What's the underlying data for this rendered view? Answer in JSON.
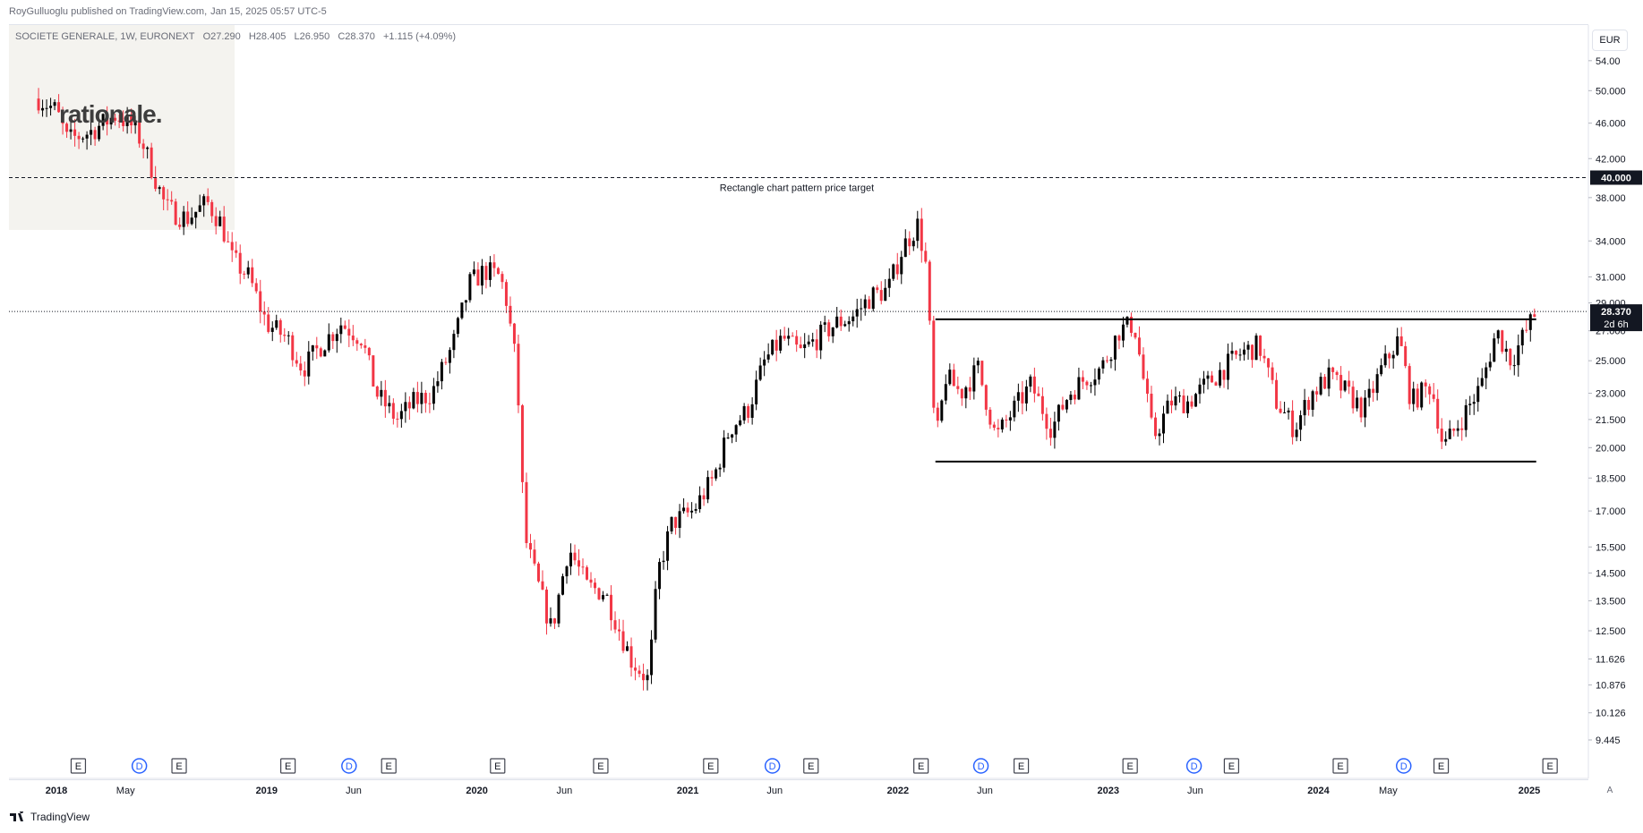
{
  "header": {
    "publisher": "RoyGulluoglu published on TradingView.com,",
    "timestamp": "Jan 15, 2025 05:57 UTC-5"
  },
  "symbol": {
    "name": "SOCIETE GENERALE, 1W, EURONEXT",
    "open": "O27.290",
    "high": "H28.405",
    "low": "L26.950",
    "close": "C28.370",
    "change": "+1.115 (+4.09%)"
  },
  "watermark": "rationale.",
  "currency": "EUR",
  "footer": {
    "brand": "TradingView",
    "auto_label": "A"
  },
  "colors": {
    "up": "#000000",
    "down": "#f23645",
    "grid": "#e0e3eb",
    "event_d": "#2962ff"
  },
  "chart_data": {
    "type": "candlestick",
    "y_scale": "log",
    "price_ticks": [
      "54.00",
      "50.000",
      "46.000",
      "42.000",
      "38.000",
      "34.000",
      "31.000",
      "29.000",
      "27.000",
      "25.000",
      "23.000",
      "21.500",
      "20.000",
      "18.500",
      "17.000",
      "15.500",
      "14.500",
      "13.500",
      "12.500",
      "11.626",
      "10.876",
      "10.126",
      "9.445"
    ],
    "time_labels": [
      {
        "label": "2018",
        "bold": true,
        "date": "2018-01-01"
      },
      {
        "label": "May",
        "bold": false,
        "date": "2018-05-01"
      },
      {
        "label": "2019",
        "bold": true,
        "date": "2019-01-01"
      },
      {
        "label": "Jun",
        "bold": false,
        "date": "2019-06-01"
      },
      {
        "label": "2020",
        "bold": true,
        "date": "2020-01-01"
      },
      {
        "label": "Jun",
        "bold": false,
        "date": "2020-06-01"
      },
      {
        "label": "2021",
        "bold": true,
        "date": "2021-01-01"
      },
      {
        "label": "Jun",
        "bold": false,
        "date": "2021-06-01"
      },
      {
        "label": "2022",
        "bold": true,
        "date": "2022-01-01"
      },
      {
        "label": "Jun",
        "bold": false,
        "date": "2022-06-01"
      },
      {
        "label": "2023",
        "bold": true,
        "date": "2023-01-01"
      },
      {
        "label": "Jun",
        "bold": false,
        "date": "2023-06-01"
      },
      {
        "label": "2024",
        "bold": true,
        "date": "2024-01-01"
      },
      {
        "label": "May",
        "bold": false,
        "date": "2024-05-01"
      },
      {
        "label": "2025",
        "bold": true,
        "date": "2025-01-01"
      }
    ],
    "price_series": [
      {
        "date": "2017-12-01",
        "price": 49.0
      },
      {
        "date": "2018-01-01",
        "price": 47.5
      },
      {
        "date": "2018-01-20",
        "price": 44.0
      },
      {
        "date": "2018-03-01",
        "price": 45.0
      },
      {
        "date": "2018-04-15",
        "price": 47.0
      },
      {
        "date": "2018-05-15",
        "price": 45.5
      },
      {
        "date": "2018-06-01",
        "price": 43.5
      },
      {
        "date": "2018-07-10",
        "price": 37.0
      },
      {
        "date": "2018-08-15",
        "price": 36.0
      },
      {
        "date": "2018-09-20",
        "price": 37.5
      },
      {
        "date": "2018-10-15",
        "price": 35.5
      },
      {
        "date": "2018-11-01",
        "price": 32.5
      },
      {
        "date": "2018-12-01",
        "price": 31.0
      },
      {
        "date": "2019-01-01",
        "price": 27.5
      },
      {
        "date": "2019-02-05",
        "price": 26.5
      },
      {
        "date": "2019-03-05",
        "price": 24.5
      },
      {
        "date": "2019-04-05",
        "price": 26.0
      },
      {
        "date": "2019-05-10",
        "price": 27.5
      },
      {
        "date": "2019-06-15",
        "price": 26.5
      },
      {
        "date": "2019-07-10",
        "price": 23.0
      },
      {
        "date": "2019-08-15",
        "price": 21.5
      },
      {
        "date": "2019-09-15",
        "price": 22.5
      },
      {
        "date": "2019-10-15",
        "price": 23.0
      },
      {
        "date": "2019-11-20",
        "price": 26.0
      },
      {
        "date": "2019-12-20",
        "price": 30.5
      },
      {
        "date": "2020-01-15",
        "price": 31.5
      },
      {
        "date": "2020-02-10",
        "price": 31.0
      },
      {
        "date": "2020-02-20",
        "price": 29.5
      },
      {
        "date": "2020-03-08",
        "price": 25.0
      },
      {
        "date": "2020-03-16",
        "price": 21.0
      },
      {
        "date": "2020-03-23",
        "price": 16.0
      },
      {
        "date": "2020-04-10",
        "price": 14.5
      },
      {
        "date": "2020-05-10",
        "price": 12.5
      },
      {
        "date": "2020-06-08",
        "price": 15.5
      },
      {
        "date": "2020-07-10",
        "price": 14.0
      },
      {
        "date": "2020-08-10",
        "price": 13.8
      },
      {
        "date": "2020-09-25",
        "price": 11.6
      },
      {
        "date": "2020-10-25",
        "price": 11.0
      },
      {
        "date": "2020-11-10",
        "price": 14.5
      },
      {
        "date": "2020-12-05",
        "price": 16.5
      },
      {
        "date": "2021-01-10",
        "price": 17.0
      },
      {
        "date": "2021-02-15",
        "price": 18.5
      },
      {
        "date": "2021-03-15",
        "price": 21.0
      },
      {
        "date": "2021-04-15",
        "price": 22.0
      },
      {
        "date": "2021-05-15",
        "price": 25.0
      },
      {
        "date": "2021-06-15",
        "price": 26.5
      },
      {
        "date": "2021-07-15",
        "price": 25.5
      },
      {
        "date": "2021-08-15",
        "price": 26.5
      },
      {
        "date": "2021-09-15",
        "price": 27.5
      },
      {
        "date": "2021-10-15",
        "price": 28.0
      },
      {
        "date": "2021-11-15",
        "price": 29.5
      },
      {
        "date": "2021-12-15",
        "price": 30.0
      },
      {
        "date": "2022-01-10",
        "price": 33.5
      },
      {
        "date": "2022-02-05",
        "price": 35.5
      },
      {
        "date": "2022-02-20",
        "price": 31.5
      },
      {
        "date": "2022-03-07",
        "price": 20.0
      },
      {
        "date": "2022-03-25",
        "price": 24.0
      },
      {
        "date": "2022-04-20",
        "price": 23.0
      },
      {
        "date": "2022-05-20",
        "price": 24.5
      },
      {
        "date": "2022-06-20",
        "price": 20.5
      },
      {
        "date": "2022-07-20",
        "price": 22.0
      },
      {
        "date": "2022-08-20",
        "price": 23.5
      },
      {
        "date": "2022-09-25",
        "price": 21.0
      },
      {
        "date": "2022-10-25",
        "price": 23.0
      },
      {
        "date": "2022-11-25",
        "price": 24.0
      },
      {
        "date": "2022-12-20",
        "price": 24.5
      },
      {
        "date": "2023-01-20",
        "price": 27.0
      },
      {
        "date": "2023-02-15",
        "price": 27.5
      },
      {
        "date": "2023-03-20",
        "price": 20.5
      },
      {
        "date": "2023-04-20",
        "price": 22.5
      },
      {
        "date": "2023-05-20",
        "price": 22.5
      },
      {
        "date": "2023-06-20",
        "price": 23.5
      },
      {
        "date": "2023-07-20",
        "price": 24.5
      },
      {
        "date": "2023-08-20",
        "price": 25.5
      },
      {
        "date": "2023-09-20",
        "price": 26.0
      },
      {
        "date": "2023-10-20",
        "price": 22.5
      },
      {
        "date": "2023-11-20",
        "price": 21.0
      },
      {
        "date": "2023-12-20",
        "price": 23.0
      },
      {
        "date": "2024-01-20",
        "price": 24.0
      },
      {
        "date": "2024-02-20",
        "price": 23.0
      },
      {
        "date": "2024-03-20",
        "price": 22.0
      },
      {
        "date": "2024-04-20",
        "price": 24.5
      },
      {
        "date": "2024-05-20",
        "price": 26.5
      },
      {
        "date": "2024-06-10",
        "price": 22.5
      },
      {
        "date": "2024-07-15",
        "price": 23.5
      },
      {
        "date": "2024-08-05",
        "price": 20.0
      },
      {
        "date": "2024-09-05",
        "price": 21.5
      },
      {
        "date": "2024-10-10",
        "price": 23.5
      },
      {
        "date": "2024-11-05",
        "price": 27.0
      },
      {
        "date": "2024-12-01",
        "price": 25.0
      },
      {
        "date": "2024-12-20",
        "price": 26.5
      },
      {
        "date": "2025-01-13",
        "price": 28.37
      }
    ],
    "rectangle": {
      "top": 27.8,
      "bottom": 19.3,
      "start": "2022-03-07",
      "end": "2025-01-13"
    },
    "target": {
      "price": 40.0,
      "price_label": "40.000",
      "label": "Rectangle chart pattern price target"
    },
    "last": {
      "price": 28.37,
      "price_label": "28.370",
      "countdown": "2d 6h"
    },
    "events": [
      {
        "type": "E",
        "date": "2018-02-08"
      },
      {
        "type": "D",
        "date": "2018-05-25"
      },
      {
        "type": "E",
        "date": "2018-08-02"
      },
      {
        "type": "E",
        "date": "2019-02-07"
      },
      {
        "type": "D",
        "date": "2019-05-24"
      },
      {
        "type": "E",
        "date": "2019-08-01"
      },
      {
        "type": "E",
        "date": "2020-02-06"
      },
      {
        "type": "E",
        "date": "2020-08-03"
      },
      {
        "type": "E",
        "date": "2021-02-10"
      },
      {
        "type": "D",
        "date": "2021-05-28"
      },
      {
        "type": "E",
        "date": "2021-08-03"
      },
      {
        "type": "E",
        "date": "2022-02-10"
      },
      {
        "type": "D",
        "date": "2022-05-25"
      },
      {
        "type": "E",
        "date": "2022-08-03"
      },
      {
        "type": "E",
        "date": "2023-02-08"
      },
      {
        "type": "D",
        "date": "2023-05-30"
      },
      {
        "type": "E",
        "date": "2023-08-03"
      },
      {
        "type": "E",
        "date": "2024-02-08"
      },
      {
        "type": "D",
        "date": "2024-05-28"
      },
      {
        "type": "E",
        "date": "2024-08-01"
      },
      {
        "type": "E",
        "date": "2025-02-06"
      }
    ]
  }
}
